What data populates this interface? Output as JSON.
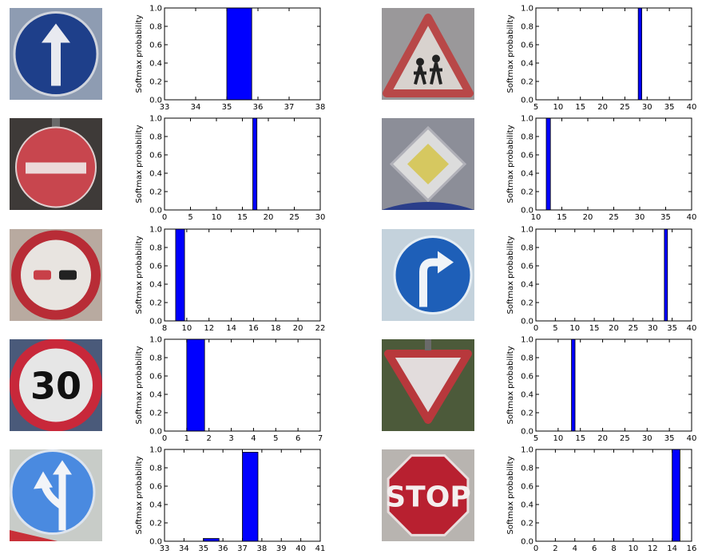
{
  "colors": {
    "bar": "#0000ff",
    "bar_edge": "#000000",
    "axes": "#000000"
  },
  "chart_data": [
    {
      "type": "bar",
      "sign_icon": "ahead-only-sign-icon",
      "xlim": [
        33,
        38
      ],
      "ylim": [
        0,
        1.0
      ],
      "xticks": [
        "33",
        "34",
        "35",
        "36",
        "37",
        "38"
      ],
      "yticks": [
        "0.0",
        "0.2",
        "0.4",
        "0.6",
        "0.8",
        "1.0"
      ],
      "ylabel": "Softmax probability",
      "bars": [
        {
          "x": 35,
          "value": 1.0
        }
      ]
    },
    {
      "type": "bar",
      "sign_icon": "children-crossing-sign-icon",
      "xlim": [
        5,
        40
      ],
      "ylim": [
        0,
        1.0
      ],
      "xticks": [
        "5",
        "10",
        "15",
        "20",
        "25",
        "30",
        "35",
        "40"
      ],
      "yticks": [
        "0.0",
        "0.2",
        "0.4",
        "0.6",
        "0.8",
        "1.0"
      ],
      "ylabel": "Softmax probability",
      "bars": [
        {
          "x": 28,
          "value": 1.0
        }
      ]
    },
    {
      "type": "bar",
      "sign_icon": "no-entry-sign-icon",
      "xlim": [
        0,
        30
      ],
      "ylim": [
        0,
        1.0
      ],
      "xticks": [
        "0",
        "5",
        "10",
        "15",
        "20",
        "25",
        "30"
      ],
      "yticks": [
        "0.0",
        "0.2",
        "0.4",
        "0.6",
        "0.8",
        "1.0"
      ],
      "ylabel": "Softmax probability",
      "bars": [
        {
          "x": 17,
          "value": 1.0
        }
      ]
    },
    {
      "type": "bar",
      "sign_icon": "priority-road-sign-icon",
      "xlim": [
        10,
        40
      ],
      "ylim": [
        0,
        1.0
      ],
      "xticks": [
        "10",
        "15",
        "20",
        "25",
        "30",
        "35",
        "40"
      ],
      "yticks": [
        "0.0",
        "0.2",
        "0.4",
        "0.6",
        "0.8",
        "1.0"
      ],
      "ylabel": "Softmax probability",
      "bars": [
        {
          "x": 12,
          "value": 1.0
        }
      ]
    },
    {
      "type": "bar",
      "sign_icon": "no-passing-sign-icon",
      "xlim": [
        8,
        22
      ],
      "ylim": [
        0,
        1.0
      ],
      "xticks": [
        "8",
        "10",
        "12",
        "14",
        "16",
        "18",
        "20",
        "22"
      ],
      "yticks": [
        "0.0",
        "0.2",
        "0.4",
        "0.6",
        "0.8",
        "1.0"
      ],
      "ylabel": "Softmax probability",
      "bars": [
        {
          "x": 9,
          "value": 1.0
        }
      ]
    },
    {
      "type": "bar",
      "sign_icon": "turn-right-ahead-sign-icon",
      "xlim": [
        0,
        40
      ],
      "ylim": [
        0,
        1.0
      ],
      "xticks": [
        "0",
        "5",
        "10",
        "15",
        "20",
        "25",
        "30",
        "35",
        "40"
      ],
      "yticks": [
        "0.0",
        "0.2",
        "0.4",
        "0.6",
        "0.8",
        "1.0"
      ],
      "ylabel": "Softmax probability",
      "bars": [
        {
          "x": 33,
          "value": 1.0
        }
      ]
    },
    {
      "type": "bar",
      "sign_icon": "speed-limit-30-sign-icon",
      "sign_text": "30",
      "xlim": [
        0,
        7
      ],
      "ylim": [
        0,
        1.0
      ],
      "xticks": [
        "0",
        "1",
        "2",
        "3",
        "4",
        "5",
        "6",
        "7"
      ],
      "yticks": [
        "0.0",
        "0.2",
        "0.4",
        "0.6",
        "0.8",
        "1.0"
      ],
      "ylabel": "Softmax probability",
      "bars": [
        {
          "x": 1,
          "value": 1.0
        }
      ]
    },
    {
      "type": "bar",
      "sign_icon": "yield-sign-icon",
      "xlim": [
        5,
        40
      ],
      "ylim": [
        0,
        1.0
      ],
      "xticks": [
        "5",
        "10",
        "15",
        "20",
        "25",
        "30",
        "35",
        "40"
      ],
      "yticks": [
        "0.0",
        "0.2",
        "0.4",
        "0.6",
        "0.8",
        "1.0"
      ],
      "ylabel": "Softmax probability",
      "bars": [
        {
          "x": 13,
          "value": 1.0
        }
      ]
    },
    {
      "type": "bar",
      "sign_icon": "go-straight-or-left-sign-icon",
      "xlim": [
        33,
        41
      ],
      "ylim": [
        0,
        1.0
      ],
      "xticks": [
        "33",
        "34",
        "35",
        "36",
        "37",
        "38",
        "39",
        "40",
        "41"
      ],
      "yticks": [
        "0.0",
        "0.2",
        "0.4",
        "0.6",
        "0.8",
        "1.0"
      ],
      "ylabel": "Softmax probability",
      "bars": [
        {
          "x": 35,
          "value": 0.03
        },
        {
          "x": 37,
          "value": 0.97
        }
      ]
    },
    {
      "type": "bar",
      "sign_icon": "stop-sign-icon",
      "sign_text": "STOP",
      "xlim": [
        0,
        16
      ],
      "ylim": [
        0,
        1.0
      ],
      "xticks": [
        "0",
        "2",
        "4",
        "6",
        "8",
        "10",
        "12",
        "14",
        "16"
      ],
      "yticks": [
        "0.0",
        "0.2",
        "0.4",
        "0.6",
        "0.8",
        "1.0"
      ],
      "ylabel": "Softmax probability",
      "bars": [
        {
          "x": 14,
          "value": 1.0
        }
      ]
    }
  ]
}
